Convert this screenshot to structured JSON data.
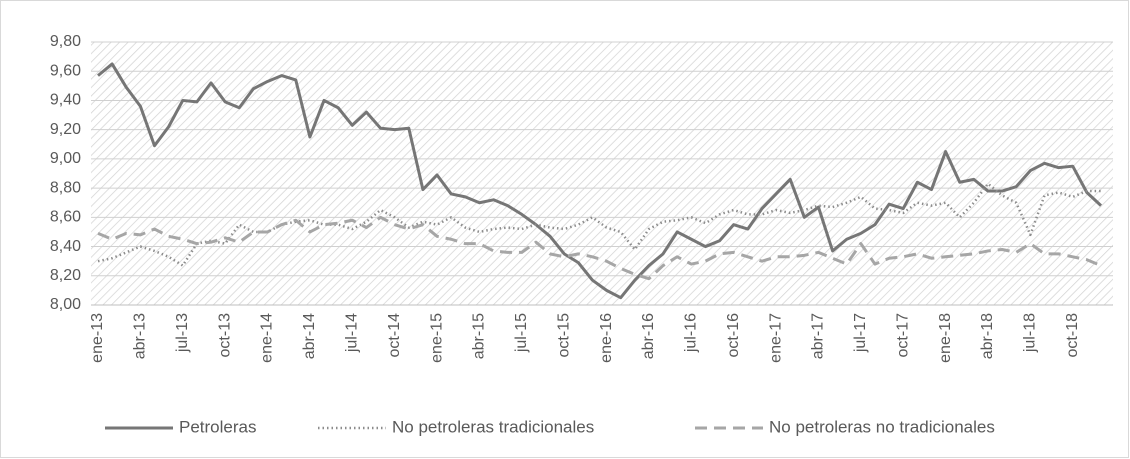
{
  "chart_data": {
    "type": "line",
    "categories": [
      "ene-13",
      null,
      null,
      "abr-13",
      null,
      null,
      "jul-13",
      null,
      null,
      "oct-13",
      null,
      null,
      "ene-14",
      null,
      null,
      "abr-14",
      null,
      null,
      "jul-14",
      null,
      null,
      "oct-14",
      null,
      null,
      "ene-15",
      null,
      null,
      "abr-15",
      null,
      null,
      "jul-15",
      null,
      null,
      "oct-15",
      null,
      null,
      "ene-16",
      null,
      null,
      "abr-16",
      null,
      null,
      "jul-16",
      null,
      null,
      "oct-16",
      null,
      null,
      "ene-17",
      null,
      null,
      "abr-17",
      null,
      null,
      "jul-17",
      null,
      null,
      "oct-17",
      null,
      null,
      "ene-18",
      null,
      null,
      "abr-18",
      null,
      null,
      "jul-18",
      null,
      null,
      "oct-18",
      null,
      null
    ],
    "series": [
      {
        "name": "Petroleras",
        "color": "#767676",
        "line_style": "solid",
        "values": [
          9.57,
          9.65,
          9.49,
          9.36,
          9.09,
          9.22,
          9.4,
          9.39,
          9.52,
          9.39,
          9.35,
          9.48,
          9.53,
          9.57,
          9.54,
          9.15,
          9.4,
          9.35,
          9.23,
          9.32,
          9.21,
          9.2,
          9.21,
          8.79,
          8.89,
          8.76,
          8.74,
          8.7,
          8.72,
          8.68,
          8.62,
          8.55,
          8.47,
          8.35,
          8.29,
          8.17,
          8.1,
          8.05,
          8.17,
          8.27,
          8.35,
          8.5,
          8.45,
          8.4,
          8.44,
          8.55,
          8.52,
          8.66,
          8.76,
          8.86,
          8.6,
          8.67,
          8.37,
          8.45,
          8.49,
          8.55,
          8.69,
          8.66,
          8.84,
          8.79,
          9.05,
          8.84,
          8.86,
          8.78,
          8.78,
          8.81,
          8.92,
          8.97,
          8.94,
          8.95,
          8.77,
          8.68
        ]
      },
      {
        "name": "No petroleras tradicionales",
        "color": "#8c8c8c",
        "line_style": "dotted",
        "values": [
          8.3,
          8.32,
          8.36,
          8.4,
          8.37,
          8.33,
          8.27,
          8.42,
          8.44,
          8.42,
          8.55,
          8.5,
          8.5,
          8.55,
          8.57,
          8.58,
          8.55,
          8.55,
          8.52,
          8.57,
          8.65,
          8.6,
          8.53,
          8.57,
          8.55,
          8.6,
          8.53,
          8.5,
          8.52,
          8.53,
          8.52,
          8.55,
          8.53,
          8.52,
          8.55,
          8.6,
          8.53,
          8.5,
          8.38,
          8.52,
          8.57,
          8.58,
          8.6,
          8.56,
          8.62,
          8.65,
          8.62,
          8.62,
          8.65,
          8.63,
          8.65,
          8.68,
          8.67,
          8.7,
          8.74,
          8.66,
          8.65,
          8.63,
          8.7,
          8.68,
          8.7,
          8.6,
          8.7,
          8.83,
          8.75,
          8.7,
          8.48,
          8.75,
          8.77,
          8.74,
          8.78,
          8.78
        ]
      },
      {
        "name": "No petroleras no tradicionales",
        "color": "#a6a6a6",
        "line_style": "dashed",
        "values": [
          8.49,
          8.45,
          8.49,
          8.48,
          8.52,
          8.47,
          8.45,
          8.42,
          8.43,
          8.46,
          8.43,
          8.5,
          8.5,
          8.55,
          8.58,
          8.5,
          8.55,
          8.56,
          8.58,
          8.53,
          8.6,
          8.55,
          8.52,
          8.55,
          8.47,
          8.45,
          8.42,
          8.42,
          8.37,
          8.36,
          8.36,
          8.43,
          8.35,
          8.33,
          8.35,
          8.33,
          8.3,
          8.25,
          8.21,
          8.18,
          8.27,
          8.33,
          8.28,
          8.3,
          8.35,
          8.36,
          8.33,
          8.3,
          8.33,
          8.33,
          8.34,
          8.36,
          8.32,
          8.28,
          8.42,
          8.28,
          8.32,
          8.33,
          8.35,
          8.32,
          8.33,
          8.34,
          8.35,
          8.37,
          8.38,
          8.36,
          8.42,
          8.35,
          8.35,
          8.33,
          8.31,
          8.27
        ]
      }
    ],
    "ylim": [
      8.0,
      9.8
    ],
    "yticks": [
      {
        "value": 8.0,
        "label": "8,00"
      },
      {
        "value": 8.2,
        "label": "8,20"
      },
      {
        "value": 8.4,
        "label": "8,40"
      },
      {
        "value": 8.6,
        "label": "8,60"
      },
      {
        "value": 8.8,
        "label": "8,80"
      },
      {
        "value": 9.0,
        "label": "9,00"
      },
      {
        "value": 9.2,
        "label": "9,20"
      },
      {
        "value": 9.4,
        "label": "9,40"
      },
      {
        "value": 9.6,
        "label": "9,60"
      },
      {
        "value": 9.8,
        "label": "9,80"
      }
    ],
    "grid": true,
    "legend": "bottom"
  }
}
